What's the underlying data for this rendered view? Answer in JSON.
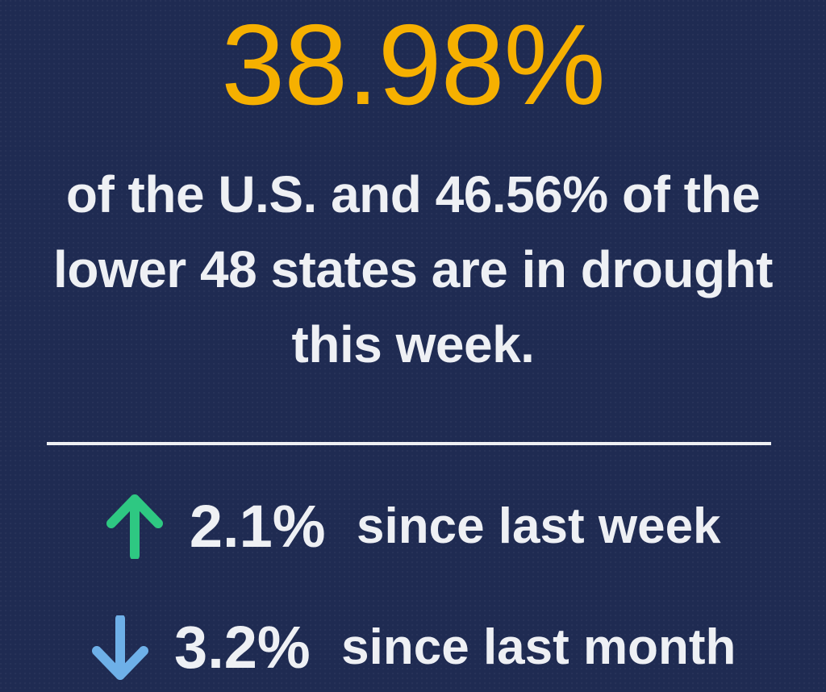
{
  "headline": {
    "value": "38.98%"
  },
  "description": {
    "text": "of the U.S. and 46.56% of the lower 48 states are in drought this week."
  },
  "stats": {
    "week": {
      "icon": "arrow-up-icon",
      "value": "2.1%",
      "label": "since last week"
    },
    "month": {
      "icon": "arrow-down-icon",
      "value": "3.2%",
      "label": "since last month"
    }
  },
  "colors": {
    "background": "#1f2b52",
    "headline": "#f6b000",
    "text": "#eef0f4",
    "arrow_up": "#2ec882",
    "arrow_down": "#6eb0e8"
  }
}
